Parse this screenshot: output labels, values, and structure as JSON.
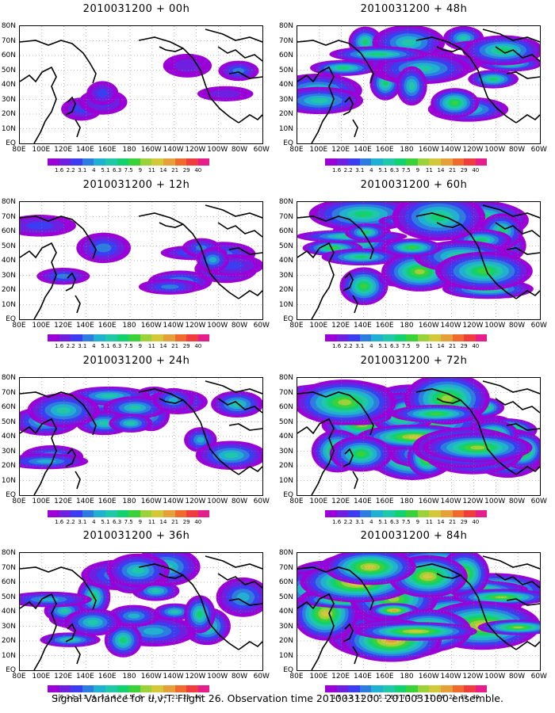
{
  "panels": [
    {
      "title": "2010031200 + 00h",
      "intensity": 0
    },
    {
      "title": "2010031200 + 48h",
      "intensity": 3
    },
    {
      "title": "2010031200 + 12h",
      "intensity": 1
    },
    {
      "title": "2010031200 + 60h",
      "intensity": 4
    },
    {
      "title": "2010031200 + 24h",
      "intensity": 2
    },
    {
      "title": "2010031200 + 72h",
      "intensity": 5
    },
    {
      "title": "2010031200 + 36h",
      "intensity": 2.5
    },
    {
      "title": "2010031200 + 84h",
      "intensity": 6
    }
  ],
  "lat_labels": [
    "80N",
    "70N",
    "60N",
    "50N",
    "40N",
    "30N",
    "20N",
    "10N",
    "EQ"
  ],
  "lon_labels": [
    "80E",
    "100E",
    "120E",
    "140E",
    "160E",
    "180",
    "160W",
    "140W",
    "120W",
    "100W",
    "80W",
    "60W"
  ],
  "colorbar": {
    "levels": [
      "1.6",
      "2.2",
      "3.1",
      "4",
      "5.1",
      "6.3",
      "7.5",
      "9",
      "11",
      "14",
      "21",
      "29",
      "40"
    ],
    "colors": [
      "#9b00d6",
      "#6e1fe0",
      "#3c3cf0",
      "#2d7de0",
      "#1fb0d2",
      "#1fc8a8",
      "#11d26e",
      "#3ad23a",
      "#9bd23a",
      "#d2c83a",
      "#e6a03a",
      "#f06a2d",
      "#f03c3c",
      "#e61e8c"
    ]
  },
  "caption": "Signal Variance for u,v,T. Flight 26. Observation time 2010031200. 2010031000 ensemble."
}
